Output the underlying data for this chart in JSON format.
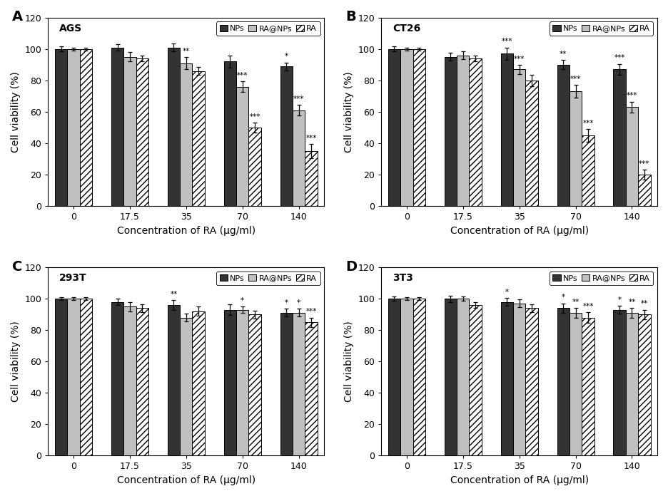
{
  "panels": [
    {
      "label": "A",
      "title": "AGS",
      "concentrations": [
        "0",
        "17.5",
        "35",
        "70",
        "140"
      ],
      "NPs": [
        100,
        101,
        101,
        92,
        89
      ],
      "NPs_err": [
        1.5,
        2.0,
        2.5,
        4.0,
        2.5
      ],
      "RANPs": [
        100,
        95,
        91,
        76,
        61
      ],
      "RANPs_err": [
        1.0,
        3.0,
        4.0,
        3.5,
        3.5
      ],
      "RA": [
        100,
        94,
        86,
        50,
        35
      ],
      "RA_err": [
        1.0,
        2.0,
        2.5,
        3.0,
        4.5
      ],
      "significance": [
        [
          "",
          "",
          ""
        ],
        [
          "",
          "",
          ""
        ],
        [
          "",
          "**",
          ""
        ],
        [
          "",
          "***",
          "***"
        ],
        [
          "*",
          "***",
          "***"
        ]
      ]
    },
    {
      "label": "B",
      "title": "CT26",
      "concentrations": [
        "0",
        "17.5",
        "35",
        "70",
        "140"
      ],
      "NPs": [
        100,
        95,
        97,
        90,
        87
      ],
      "NPs_err": [
        1.5,
        2.5,
        4.0,
        3.0,
        3.5
      ],
      "RANPs": [
        100,
        96,
        87,
        73,
        63
      ],
      "RANPs_err": [
        1.0,
        2.5,
        3.0,
        4.0,
        3.5
      ],
      "RA": [
        100,
        94,
        80,
        45,
        20
      ],
      "RA_err": [
        1.0,
        2.0,
        3.5,
        4.0,
        3.0
      ],
      "significance": [
        [
          "",
          "",
          ""
        ],
        [
          "",
          "",
          ""
        ],
        [
          "***",
          "***",
          ""
        ],
        [
          "**",
          "***",
          "***"
        ],
        [
          "***",
          "***",
          "***"
        ]
      ]
    },
    {
      "label": "C",
      "title": "293T",
      "concentrations": [
        "0",
        "17.5",
        "35",
        "70",
        "140"
      ],
      "NPs": [
        100,
        98,
        96,
        93,
        91
      ],
      "NPs_err": [
        1.0,
        2.0,
        3.0,
        3.5,
        2.5
      ],
      "RANPs": [
        100,
        95,
        88,
        93,
        91
      ],
      "RANPs_err": [
        1.0,
        3.0,
        2.5,
        2.0,
        2.5
      ],
      "RA": [
        100,
        94,
        92,
        90,
        85
      ],
      "RA_err": [
        1.0,
        2.5,
        3.0,
        2.5,
        3.0
      ],
      "significance": [
        [
          "",
          "",
          ""
        ],
        [
          "",
          "",
          ""
        ],
        [
          "**",
          "",
          ""
        ],
        [
          "",
          "*",
          ""
        ],
        [
          "*",
          "*",
          "***"
        ]
      ]
    },
    {
      "label": "D",
      "title": "3T3",
      "concentrations": [
        "0",
        "17.5",
        "35",
        "70",
        "140"
      ],
      "NPs": [
        100,
        100,
        98,
        94,
        93
      ],
      "NPs_err": [
        1.5,
        2.0,
        2.5,
        3.0,
        2.5
      ],
      "RANPs": [
        100,
        100,
        97,
        91,
        91
      ],
      "RANPs_err": [
        1.0,
        1.5,
        2.5,
        3.0,
        3.0
      ],
      "RA": [
        100,
        96,
        94,
        88,
        90
      ],
      "RA_err": [
        1.0,
        2.0,
        2.5,
        3.5,
        3.0
      ],
      "significance": [
        [
          "",
          "",
          ""
        ],
        [
          "",
          "",
          ""
        ],
        [
          "*",
          "",
          ""
        ],
        [
          "*",
          "**",
          "***"
        ],
        [
          "*",
          "**",
          "**"
        ]
      ]
    }
  ],
  "color_NPs": "#333333",
  "color_RANPs": "#c0c0c0",
  "color_RA_face": "#ffffff",
  "ylabel": "Cell viability (%)",
  "xlabel": "Concentration of RA (μg/ml)",
  "ylim": [
    0,
    120
  ],
  "yticks": [
    0,
    20,
    40,
    60,
    80,
    100,
    120
  ],
  "legend_labels": [
    "NPs",
    "RA@NPs",
    "RA"
  ],
  "bar_width": 0.22,
  "sig_fontsize": 7.5,
  "axis_label_fontsize": 10,
  "tick_fontsize": 9,
  "title_fontsize": 10,
  "legend_fontsize": 8,
  "panel_label_fontsize": 14
}
